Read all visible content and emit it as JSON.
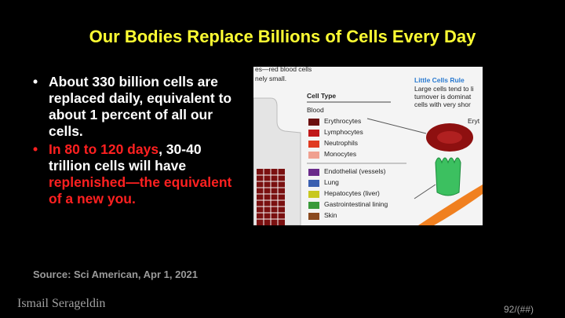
{
  "title": "Our Bodies Replace Billions of Cells Every Day",
  "bullets": [
    {
      "text": "About 330 billion cells are replaced daily, equivalent to about 1 percent of all our cells."
    },
    {
      "segments": [
        "In 80 to 120 days",
        ", 30-40 trillion cells will have ",
        "replenished—the equivalent of a new you."
      ]
    }
  ],
  "figure": {
    "caption_top": [
      "es—red blood cells",
      "nely small."
    ],
    "heading": "Cell Type",
    "groups": [
      {
        "name": "Blood",
        "items": [
          "Erythrocytes",
          "Lymphocytes",
          "Neutrophils",
          "Monocytes"
        ]
      },
      {
        "items": [
          "Endothelial (vessels)",
          "Lung",
          "Hepatocytes (liver)",
          "Gastrointestinal lining",
          "Skin"
        ]
      }
    ],
    "sidebar_title": "Little Cells Rule",
    "sidebar_text": [
      "Large cells tend to li",
      "turnover is dominat",
      "cells with very shor"
    ],
    "side_label": "Eryt"
  },
  "source": "Source: Sci American, Apr 1, 2021",
  "author": "Ismail Serageldin",
  "page_number": "92/(##)"
}
